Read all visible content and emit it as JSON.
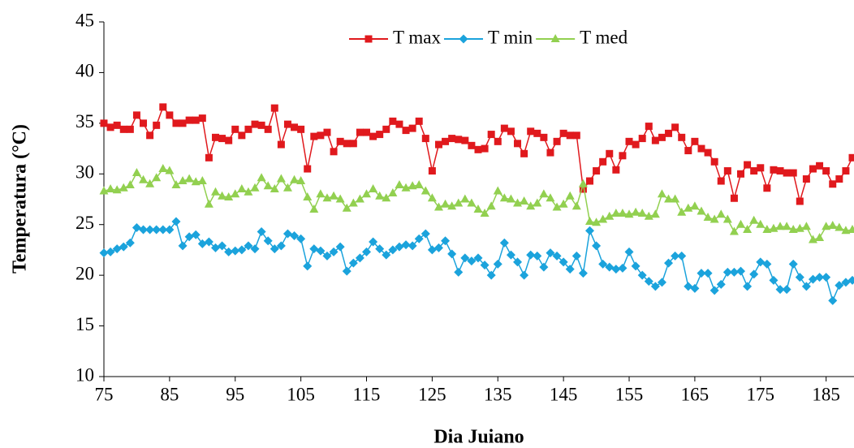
{
  "chart_data": {
    "type": "line",
    "x_label": "Dia Juiano",
    "y_label": "Temperatura (°C)",
    "xlim": [
      75,
      189
    ],
    "xticks": [
      75,
      85,
      95,
      105,
      115,
      125,
      135,
      145,
      155,
      165,
      175,
      185
    ],
    "ylim": [
      10,
      45
    ],
    "yticks": [
      10,
      15,
      20,
      25,
      30,
      35,
      40,
      45
    ],
    "grid": false,
    "legend": "top",
    "x": [
      75,
      76,
      77,
      78,
      79,
      80,
      81,
      82,
      83,
      84,
      85,
      86,
      87,
      88,
      89,
      90,
      91,
      92,
      93,
      94,
      95,
      96,
      97,
      98,
      99,
      100,
      101,
      102,
      103,
      104,
      105,
      106,
      107,
      108,
      109,
      110,
      111,
      112,
      113,
      114,
      115,
      116,
      117,
      118,
      119,
      120,
      121,
      122,
      123,
      124,
      125,
      126,
      127,
      128,
      129,
      130,
      131,
      132,
      133,
      134,
      135,
      136,
      137,
      138,
      139,
      140,
      141,
      142,
      143,
      144,
      145,
      146,
      147,
      148,
      149,
      150,
      151,
      152,
      153,
      154,
      155,
      156,
      157,
      158,
      159,
      160,
      161,
      162,
      163,
      164,
      165,
      166,
      167,
      168,
      169,
      170,
      171,
      172,
      173,
      174,
      175,
      176,
      177,
      178,
      179,
      180,
      181,
      182,
      183,
      184,
      185,
      186,
      187,
      188,
      189
    ],
    "series": [
      {
        "name": "T max",
        "color": "#e0191d",
        "marker": "square",
        "values": [
          35,
          34.6,
          34.8,
          34.4,
          34.4,
          35.8,
          35,
          33.8,
          34.8,
          36.6,
          35.8,
          35,
          35,
          35.3,
          35.3,
          35.5,
          31.6,
          33.6,
          33.5,
          33.3,
          34.4,
          33.8,
          34.4,
          34.9,
          34.8,
          34.4,
          36.5,
          32.9,
          34.9,
          34.6,
          34.4,
          30.5,
          33.7,
          33.8,
          34.1,
          32.2,
          33.2,
          33,
          33,
          34.1,
          34.1,
          33.7,
          33.9,
          34.4,
          35.2,
          34.9,
          34.3,
          34.5,
          35.2,
          33.5,
          30.3,
          32.9,
          33.2,
          33.5,
          33.4,
          33.3,
          32.8,
          32.4,
          32.5,
          33.9,
          33.2,
          34.5,
          34.2,
          33,
          32,
          34.2,
          34,
          33.6,
          32.1,
          33.2,
          34,
          33.8,
          33.8,
          28.5,
          29.3,
          30.3,
          31.2,
          32,
          30.4,
          31.8,
          33.2,
          32.9,
          33.5,
          34.7,
          33.3,
          33.6,
          34,
          34.6,
          33.6,
          32.3,
          33.2,
          32.5,
          32.1,
          31.2,
          29.3,
          30.3,
          27.6,
          30,
          30.9,
          30.3,
          30.6,
          28.6,
          30.4,
          30.3,
          30.1,
          30.1,
          27.3,
          29.5,
          30.5,
          30.8,
          30.3,
          29,
          29.5,
          30.3,
          31.6
        ]
      },
      {
        "name": "T min",
        "color": "#1ba3dc",
        "marker": "diamond",
        "values": [
          22.2,
          22.3,
          22.6,
          22.8,
          23.2,
          24.7,
          24.5,
          24.5,
          24.5,
          24.5,
          24.5,
          25.3,
          22.9,
          23.8,
          24,
          23.1,
          23.3,
          22.7,
          22.9,
          22.3,
          22.4,
          22.5,
          22.9,
          22.6,
          24.3,
          23.4,
          22.6,
          22.9,
          24.1,
          23.9,
          23.6,
          20.9,
          22.6,
          22.4,
          21.9,
          22.3,
          22.8,
          20.4,
          21.2,
          21.7,
          22.3,
          23.3,
          22.6,
          22,
          22.5,
          22.8,
          23,
          22.9,
          23.6,
          24.1,
          22.5,
          22.7,
          23.4,
          22.1,
          20.3,
          21.7,
          21.4,
          21.7,
          21,
          20,
          21.1,
          23.2,
          22,
          21.3,
          20,
          22,
          21.9,
          20.8,
          22.2,
          21.9,
          21.3,
          20.6,
          21.9,
          20.2,
          24.4,
          22.9,
          21.1,
          20.8,
          20.6,
          20.7,
          22.3,
          20.9,
          20,
          19.4,
          18.9,
          19.3,
          21.2,
          21.9,
          21.9,
          18.9,
          18.7,
          20.2,
          20.2,
          18.5,
          19.1,
          20.3,
          20.3,
          20.4,
          18.9,
          20.1,
          21.3,
          21.1,
          19.5,
          18.6,
          18.6,
          21.1,
          19.8,
          18.9,
          19.6,
          19.8,
          19.8,
          17.5,
          19,
          19.3,
          19.5
        ]
      },
      {
        "name": "T med",
        "color": "#92d050",
        "marker": "triangle",
        "values": [
          28.3,
          28.5,
          28.4,
          28.6,
          28.9,
          30.1,
          29.4,
          29,
          29.6,
          30.5,
          30.3,
          28.9,
          29.3,
          29.5,
          29.2,
          29.3,
          27,
          28.2,
          27.8,
          27.7,
          28,
          28.5,
          28.2,
          28.6,
          29.6,
          28.8,
          28.5,
          29.5,
          28.6,
          29.4,
          29.3,
          27.7,
          26.5,
          28,
          27.6,
          27.8,
          27.5,
          26.6,
          27.1,
          27.5,
          28,
          28.5,
          27.8,
          27.6,
          28.1,
          28.9,
          28.6,
          28.8,
          28.9,
          28.3,
          27.6,
          26.7,
          27,
          26.8,
          27.1,
          27.5,
          27.1,
          26.5,
          26.1,
          26.8,
          28.3,
          27.6,
          27.5,
          27.1,
          27.3,
          26.8,
          27.1,
          28,
          27.6,
          26.7,
          27,
          27.8,
          26.8,
          29,
          25.3,
          25.2,
          25.5,
          25.8,
          26.1,
          26.1,
          26,
          26.2,
          26.1,
          25.8,
          26,
          28,
          27.5,
          27.5,
          26.2,
          26.6,
          26.8,
          26.3,
          25.7,
          25.5,
          26,
          25.5,
          24.3,
          25,
          24.5,
          25.4,
          25,
          24.5,
          24.6,
          24.8,
          24.8,
          24.5,
          24.6,
          24.8,
          23.5,
          23.7,
          24.8,
          24.9,
          24.7,
          24.4,
          24.5
        ]
      }
    ]
  }
}
